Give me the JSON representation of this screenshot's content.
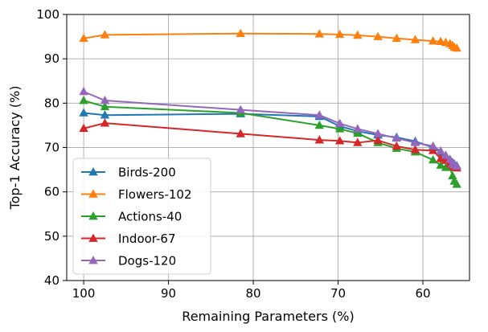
{
  "chart_data": {
    "type": "line",
    "title": "",
    "xlabel": "Remaining Parameters (%)",
    "ylabel": "Top-1 Accuracy (%)",
    "xlim": [
      102,
      54.5
    ],
    "ylim": [
      40,
      100
    ],
    "x_reversed": true,
    "xticks": [
      100,
      90,
      80,
      70,
      60
    ],
    "yticks": [
      40,
      50,
      60,
      70,
      80,
      90,
      100
    ],
    "grid": true,
    "legend_position": "lower-left",
    "marker": "triangle-up",
    "series": [
      {
        "name": "Birds-200",
        "color": "#1f77b4",
        "x": [
          100,
          97.5,
          81.5,
          72.2,
          69.8,
          67.7,
          65.3,
          63.1,
          60.9,
          58.8,
          57.9,
          57.3,
          56.8,
          56.5,
          56.3,
          56.0
        ],
        "y": [
          77.8,
          77.3,
          77.6,
          77.0,
          74.8,
          73.7,
          72.8,
          72.3,
          71.4,
          70.0,
          68.9,
          68.2,
          67.3,
          66.6,
          66.3,
          65.9
        ]
      },
      {
        "name": "Flowers-102",
        "color": "#ff7f0e",
        "x": [
          100,
          97.5,
          81.5,
          72.2,
          69.8,
          67.7,
          65.3,
          63.1,
          60.9,
          58.8,
          57.9,
          57.3,
          56.8,
          56.5,
          56.3,
          56.0
        ],
        "y": [
          94.6,
          95.4,
          95.7,
          95.6,
          95.5,
          95.3,
          95.0,
          94.6,
          94.3,
          94.0,
          93.9,
          93.7,
          93.4,
          93.0,
          92.6,
          92.4
        ]
      },
      {
        "name": "Actions-40",
        "color": "#2ca02c",
        "x": [
          100,
          97.5,
          81.5,
          72.2,
          69.8,
          67.7,
          65.3,
          63.1,
          60.9,
          58.8,
          57.9,
          57.3,
          56.8,
          56.5,
          56.3,
          56.0
        ],
        "y": [
          80.6,
          79.2,
          77.8,
          75.0,
          74.2,
          73.2,
          71.1,
          69.8,
          69.0,
          67.2,
          66.0,
          65.5,
          65.5,
          63.6,
          62.4,
          61.7
        ]
      },
      {
        "name": "Indoor-67",
        "color": "#d62728",
        "x": [
          100,
          97.5,
          81.5,
          72.2,
          69.8,
          67.7,
          65.3,
          63.1,
          60.9,
          58.8,
          57.9,
          57.3,
          56.8,
          56.5,
          56.3,
          56.0
        ],
        "y": [
          74.3,
          75.5,
          73.1,
          71.7,
          71.5,
          71.1,
          71.6,
          70.3,
          69.5,
          69.3,
          67.5,
          67.1,
          66.4,
          66.0,
          65.6,
          65.4
        ]
      },
      {
        "name": "Dogs-120",
        "color": "#9467bd",
        "x": [
          100,
          97.5,
          81.5,
          72.2,
          69.8,
          67.7,
          65.3,
          63.1,
          60.9,
          58.8,
          57.9,
          57.3,
          56.8,
          56.5,
          56.3,
          56.0
        ],
        "y": [
          82.6,
          80.6,
          78.5,
          77.3,
          75.4,
          74.2,
          73.1,
          72.1,
          71.1,
          70.3,
          69.2,
          68.2,
          67.3,
          66.4,
          66.1,
          65.8
        ]
      }
    ]
  }
}
